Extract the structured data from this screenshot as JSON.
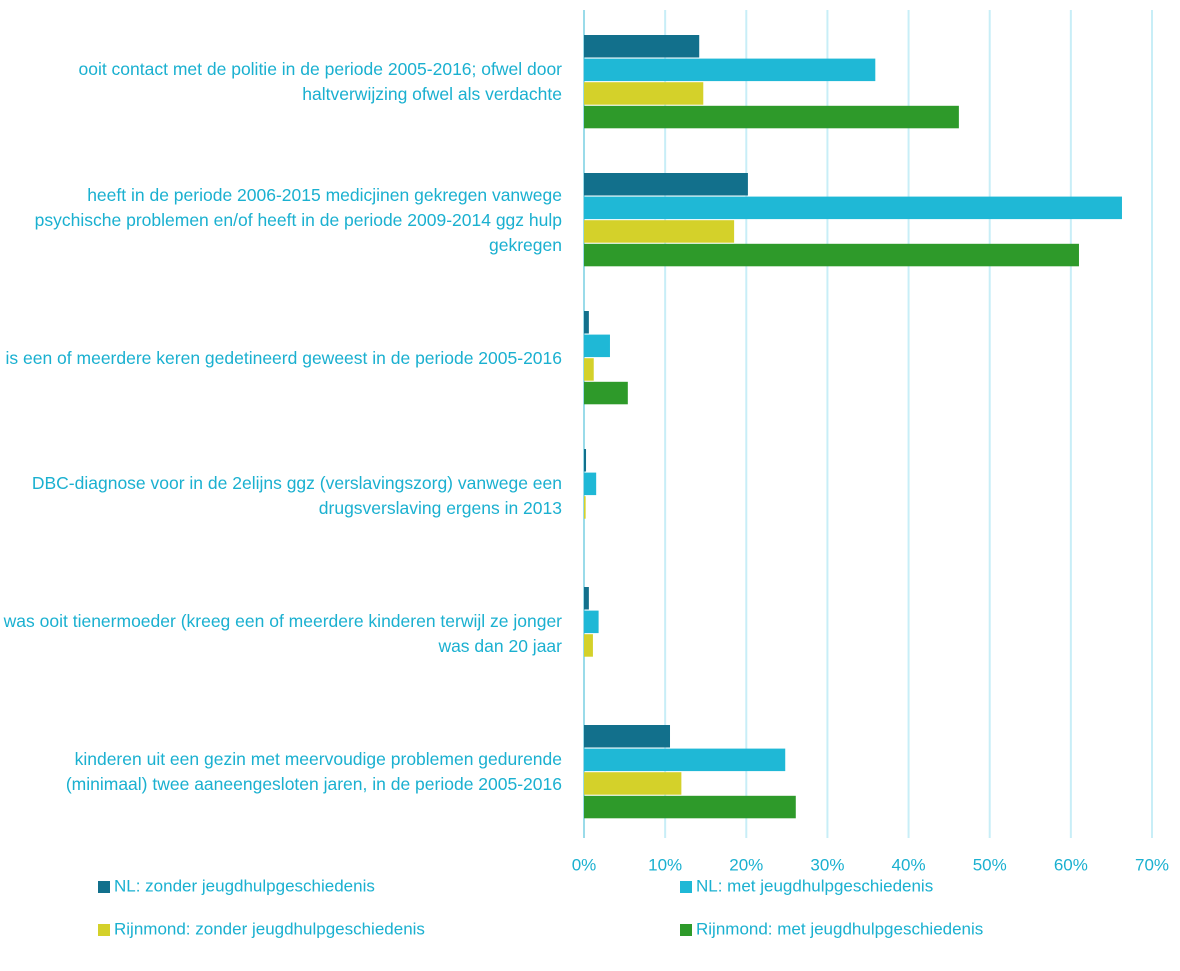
{
  "chart_data": {
    "type": "barh",
    "categories": [
      "ooit contact met de politie in de periode 2005-2016; ofwel door haltverwijzing ofwel als verdachte",
      "heeft in de periode 2006-2015 medicjinen gekregen vanwege psychische problemen en/of heeft in de periode 2009-2014 ggz hulp gekregen",
      "is een of meerdere keren gedetineerd geweest in de periode 2005-2016",
      "DBC-diagnose voor in de 2elijns ggz (verslavingszorg) vanwege een drugsverslaving ergens in 2013",
      "was ooit tienermoeder (kreeg een of meerdere kinderen terwijl ze jonger was dan 20 jaar",
      "kinderen uit een gezin met meervoudige problemen gedurende (minimaal) twee aaneengesloten jaren, in de periode 2005-2016"
    ],
    "series": [
      {
        "name": "NL: zonder jeugdhulpgeschiedenis",
        "color": "#12708c",
        "values": [
          14.2,
          20.2,
          0.6,
          0.25,
          0.6,
          10.6
        ]
      },
      {
        "name": "NL: met jeugdhulpgeschiedenis",
        "color": "#1fb8d6",
        "values": [
          35.9,
          66.3,
          3.2,
          1.5,
          1.8,
          24.8
        ]
      },
      {
        "name": "Rijnmond: zonder jeugdhulpgeschiedenis",
        "color": "#d4d12a",
        "values": [
          14.7,
          18.5,
          1.2,
          0.2,
          1.1,
          12.0
        ]
      },
      {
        "name": "Rijnmond: met jeugdhulpgeschiedenis",
        "color": "#2e9a2a",
        "values": [
          46.2,
          61.0,
          5.4,
          0,
          0,
          26.1
        ]
      }
    ],
    "xlim": [
      0,
      70
    ],
    "xticks": [
      {
        "value": 0,
        "label": "0%"
      },
      {
        "value": 10,
        "label": "10%"
      },
      {
        "value": 20,
        "label": "20%"
      },
      {
        "value": 30,
        "label": "30%"
      },
      {
        "value": 40,
        "label": "40%"
      },
      {
        "value": 50,
        "label": "50%"
      },
      {
        "value": 60,
        "label": "60%"
      },
      {
        "value": 70,
        "label": "70%"
      }
    ],
    "grid": true,
    "legend": "bottom"
  }
}
